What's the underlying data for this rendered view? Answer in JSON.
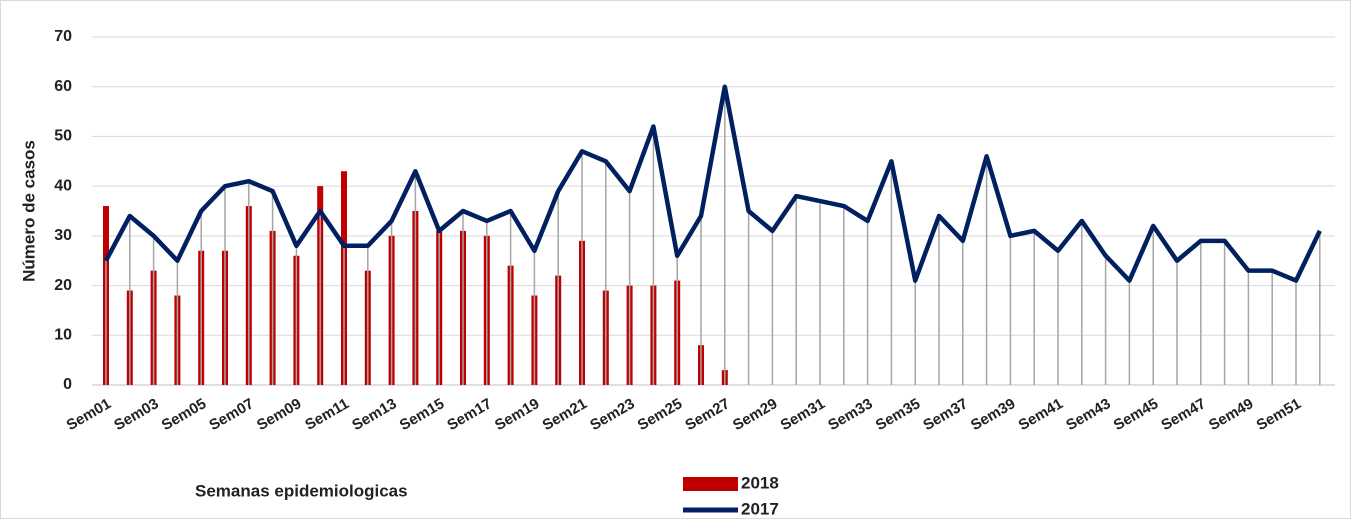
{
  "chart_data": {
    "type": "bar_line",
    "y_label": "Número de casos",
    "x_label": "Semanas epidemiologicas",
    "categories": [
      "Sem01",
      null,
      "Sem03",
      null,
      "Sem05",
      null,
      "Sem07",
      null,
      "Sem09",
      null,
      "Sem11",
      null,
      "Sem13",
      null,
      "Sem15",
      null,
      "Sem17",
      null,
      "Sem19",
      null,
      "Sem21",
      null,
      "Sem23",
      null,
      "Sem25",
      null,
      "Sem27",
      null,
      "Sem29",
      null,
      "Sem31",
      null,
      "Sem33",
      null,
      "Sem35",
      null,
      "Sem37",
      null,
      "Sem39",
      null,
      "Sem41",
      null,
      "Sem43",
      null,
      "Sem45",
      null,
      "Sem47",
      null,
      "Sem49",
      null,
      "Sem51",
      null
    ],
    "series": [
      {
        "name": "2018",
        "type": "bar",
        "color": "#c00000",
        "values": [
          36,
          19,
          23,
          18,
          27,
          27,
          36,
          31,
          26,
          40,
          43,
          23,
          30,
          35,
          31,
          31,
          30,
          24,
          18,
          22,
          29,
          19,
          20,
          20,
          21,
          8,
          3,
          null,
          null,
          null,
          null,
          null,
          null,
          null,
          null,
          null,
          null,
          null,
          null,
          null,
          null,
          null,
          null,
          null,
          null,
          null,
          null,
          null,
          null,
          null,
          null,
          null
        ]
      },
      {
        "name": "2017",
        "type": "line",
        "color": "#002060",
        "values": [
          25,
          34,
          30,
          25,
          35,
          40,
          41,
          39,
          28,
          35,
          28,
          28,
          33,
          43,
          31,
          35,
          33,
          35,
          27,
          39,
          47,
          45,
          39,
          52,
          26,
          34,
          60,
          35,
          31,
          38,
          37,
          36,
          33,
          45,
          21,
          34,
          29,
          46,
          30,
          31,
          27,
          33,
          26,
          21,
          32,
          25,
          29,
          29,
          23,
          23,
          21,
          31
        ]
      }
    ],
    "ylim": [
      0,
      70
    ],
    "yticks": [
      0,
      10,
      20,
      30,
      40,
      50,
      60,
      70
    ],
    "grid": true,
    "legend": "bottom"
  }
}
